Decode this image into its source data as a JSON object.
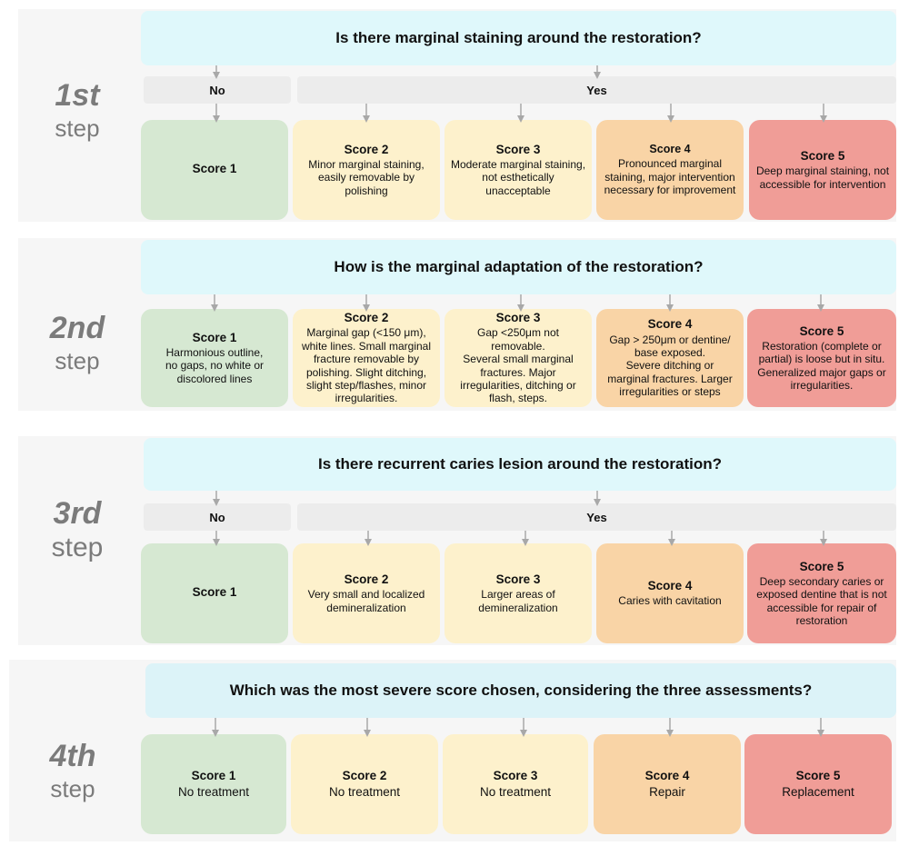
{
  "steps": [
    {
      "num": "1st",
      "word": "step",
      "question": "Is there marginal staining around the restoration?",
      "no_label": "No",
      "yes_label": "Yes",
      "scores": [
        {
          "title": "Score 1",
          "desc": ""
        },
        {
          "title": "Score 2",
          "desc": "Minor marginal staining,\neasily removable by polishing"
        },
        {
          "title": "Score 3",
          "desc": "Moderate marginal staining,\nnot esthetically unacceptable"
        },
        {
          "title": "Score 4",
          "desc": "Pronounced marginal\nstaining, major intervention\nnecessary for improvement"
        },
        {
          "title": "Score 5",
          "desc": "Deep marginal staining, not\naccessible for intervention"
        }
      ]
    },
    {
      "num": "2nd",
      "word": "step",
      "question": "How is the marginal adaptation of the restoration?",
      "scores": [
        {
          "title": "Score 1",
          "desc": "Harmonious outline,\nno gaps, no white or\ndiscolored lines"
        },
        {
          "title": "Score 2",
          "desc": "Marginal gap (<150 μm),\nwhite lines. Small marginal\nfracture removable by\npolishing. Slight ditching,\nslight step/flashes, minor\nirregularities."
        },
        {
          "title": "Score 3",
          "desc": "Gap <250μm not\nremovable.\nSeveral small marginal\nfractures. Major\nirregularities, ditching or\nflash, steps."
        },
        {
          "title": "Score 4",
          "desc": "Gap > 250μm or dentine/\nbase exposed.\nSevere ditching or\nmarginal fractures. Larger\nirregularities or steps"
        },
        {
          "title": "Score 5",
          "desc": "Restoration (complete or\npartial) is loose but in situ.\nGeneralized major gaps or\nirregularities."
        }
      ]
    },
    {
      "num": "3rd",
      "word": "step",
      "question": "Is there recurrent caries lesion around the restoration?",
      "no_label": "No",
      "yes_label": "Yes",
      "scores": [
        {
          "title": "Score 1",
          "desc": ""
        },
        {
          "title": "Score 2",
          "desc": "Very small and localized\ndemineralization"
        },
        {
          "title": "Score 3",
          "desc": "Larger areas of\ndemineralization"
        },
        {
          "title": "Score 4",
          "desc": "Caries with cavitation"
        },
        {
          "title": "Score 5",
          "desc": "Deep secondary caries or\nexposed dentine that is not\naccessible for repair of\nrestoration"
        }
      ]
    },
    {
      "num": "4th",
      "word": "step",
      "question": "Which was the most severe score chosen, considering the three assessments?",
      "scores": [
        {
          "title": "Score 1",
          "desc": "No treatment"
        },
        {
          "title": "Score 2",
          "desc": "No treatment"
        },
        {
          "title": "Score 3",
          "desc": "No treatment"
        },
        {
          "title": "Score 4",
          "desc": "Repair"
        },
        {
          "title": "Score 5",
          "desc": "Replacement"
        }
      ]
    }
  ]
}
